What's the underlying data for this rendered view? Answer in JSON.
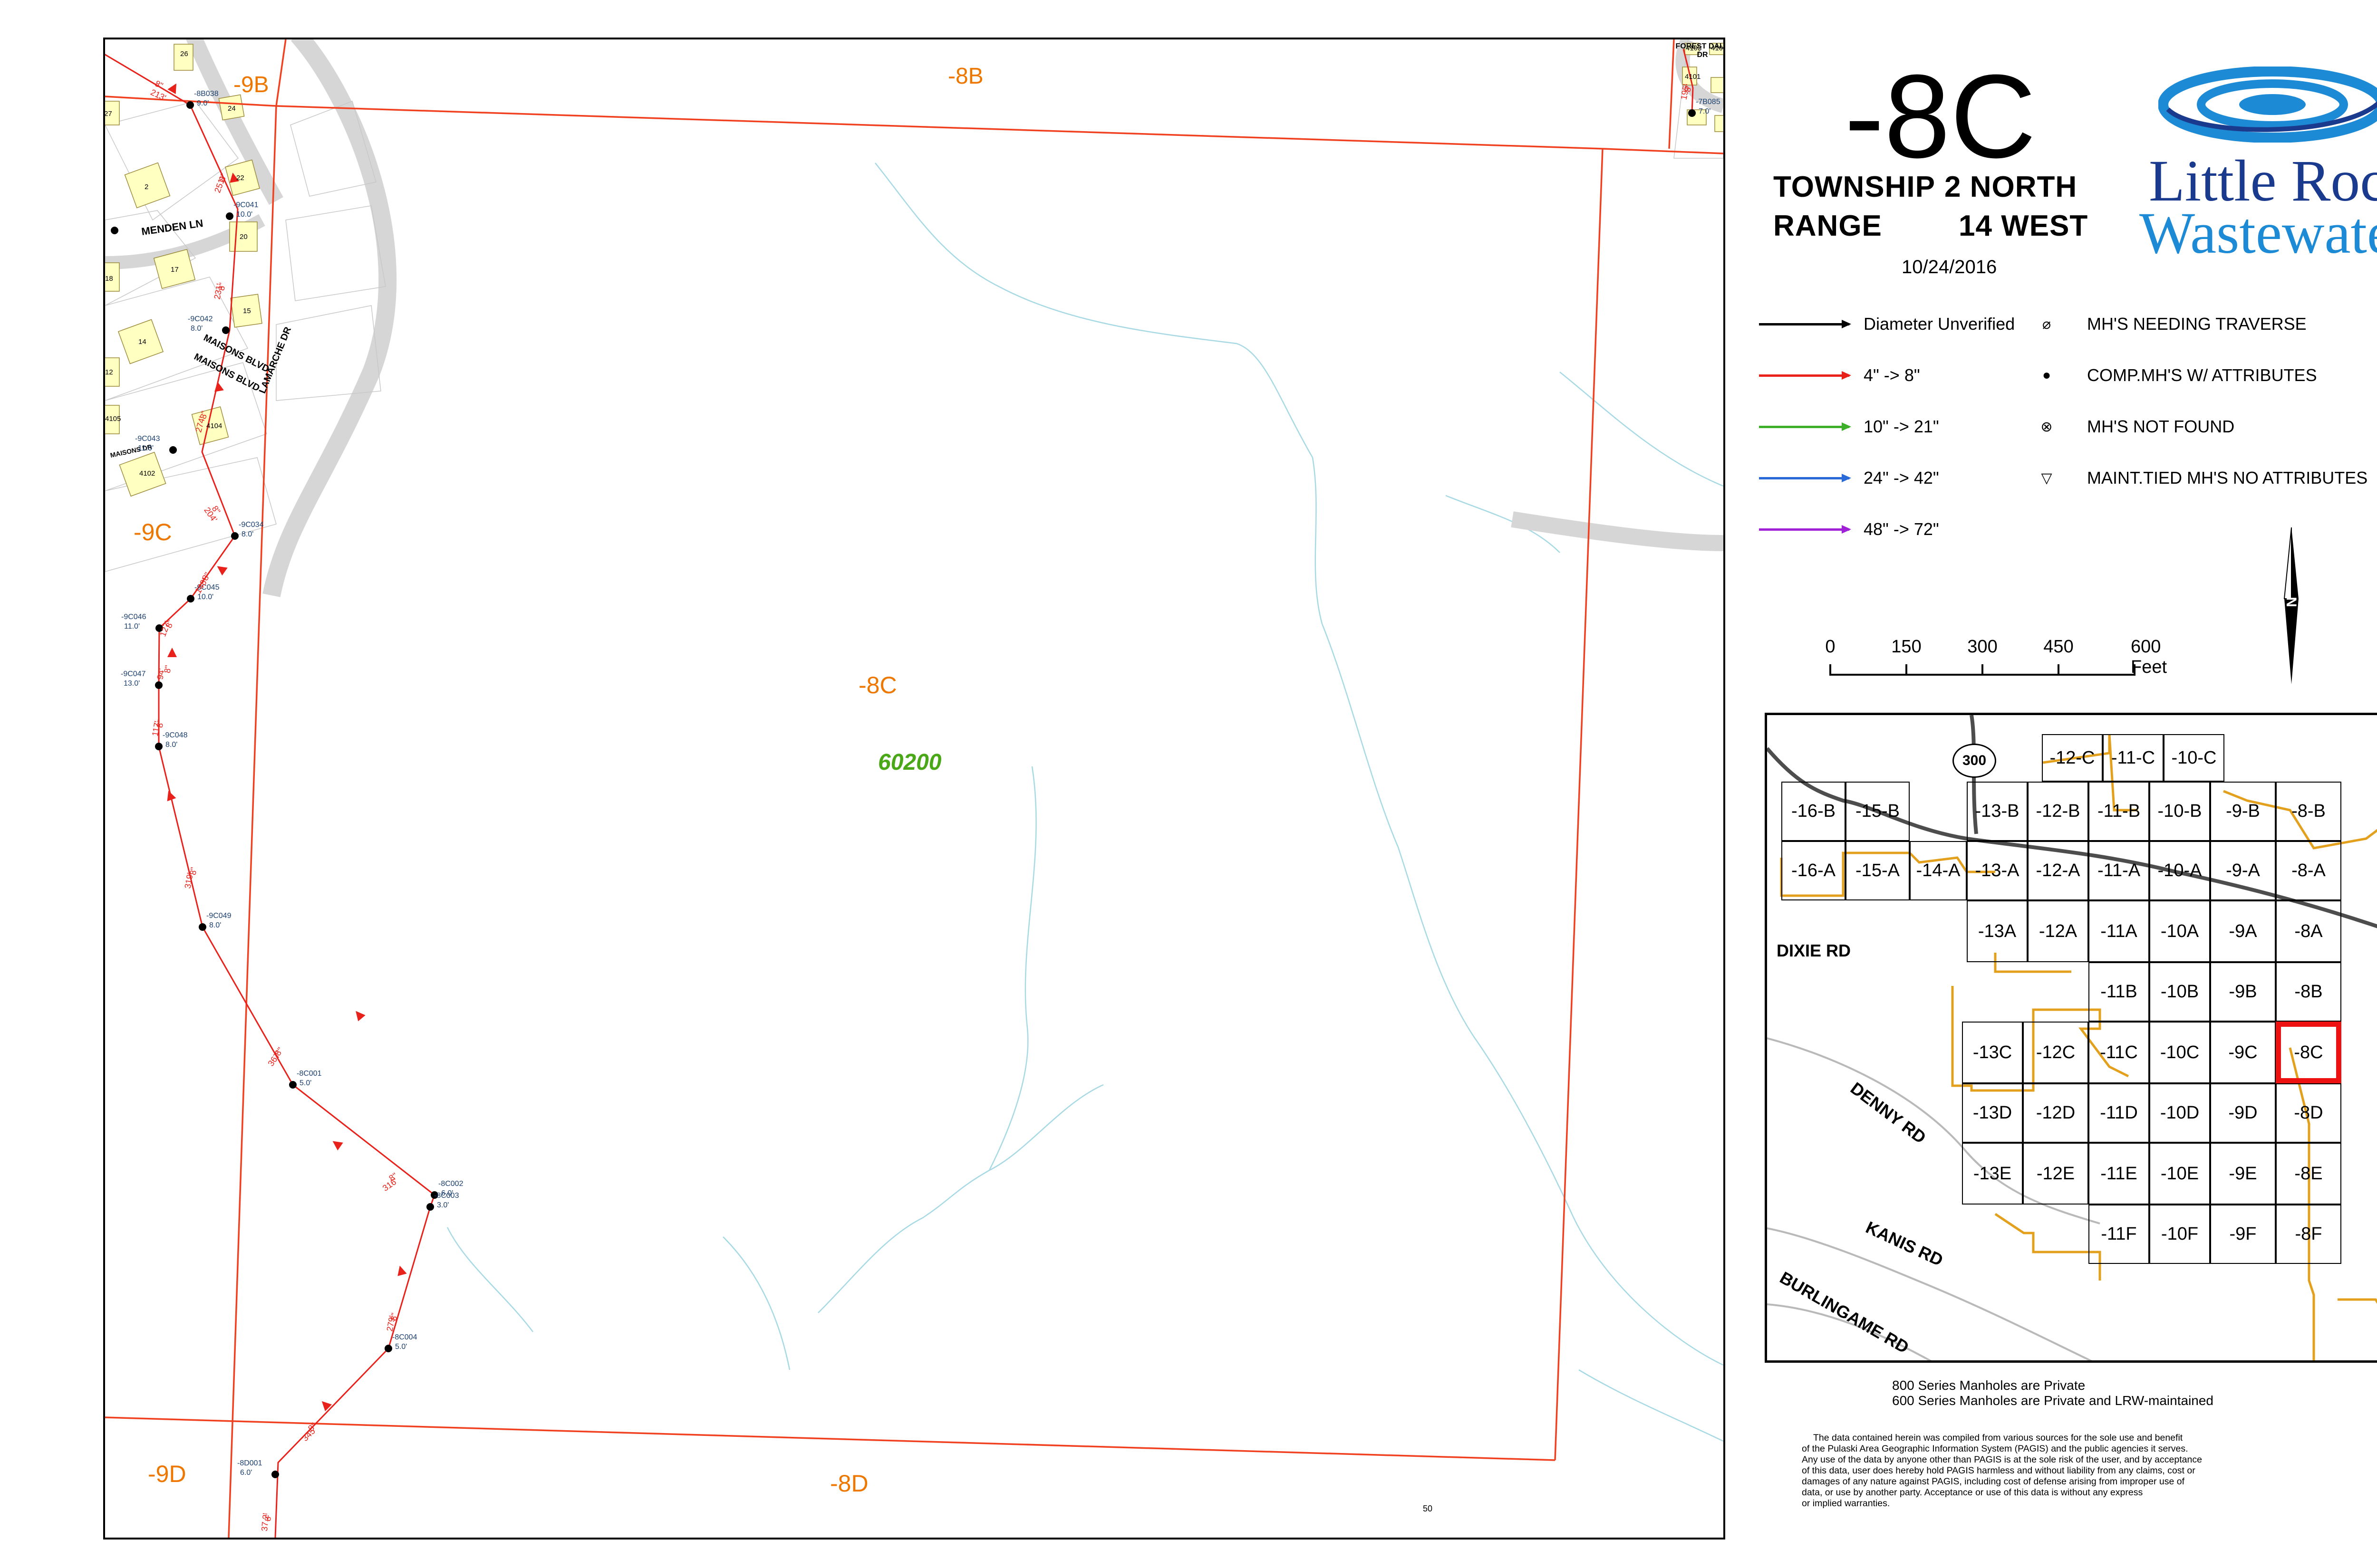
{
  "sheet": {
    "title": "-8C",
    "township_label": "TOWNSHIP",
    "township_value": "2 NORTH",
    "range_label": "RANGE",
    "range_value": "14 WEST",
    "date": "10/24/2016"
  },
  "logo": {
    "line1": "Little Rock",
    "line2": "Wastewater",
    "colors": {
      "dark": "#1a3a8e",
      "light": "#1d8ad6"
    }
  },
  "legend": {
    "lines": [
      {
        "label": "Diameter Unverified",
        "color": "#000000"
      },
      {
        "label": "4\" -> 8\"",
        "color": "#e8211b"
      },
      {
        "label": "10\" -> 21\"",
        "color": "#3cb028"
      },
      {
        "label": "24\" -> 42\"",
        "color": "#2a6ad8"
      },
      {
        "label": "48\" -> 72\"",
        "color": "#a020d8"
      }
    ],
    "symbols": [
      {
        "label": "MH'S NEEDING TRAVERSE",
        "icon": "crossed-circle-icon"
      },
      {
        "label": "COMP.MH'S W/ ATTRIBUTES",
        "icon": "filled-dot-icon"
      },
      {
        "label": "MH'S NOT FOUND",
        "icon": "x-circle-icon"
      },
      {
        "label": "MAINT.TIED MH'S NO ATTRIBUTES",
        "icon": "triangle-down-icon"
      }
    ]
  },
  "north_arrow": {
    "label": "N"
  },
  "scale_bar": {
    "ticks": [
      "0",
      "150",
      "300",
      "450",
      "600 Feet"
    ]
  },
  "map": {
    "adjacent_sheets": {
      "top": "-8B",
      "top_left": "-9B",
      "left": "-9C",
      "bottom_left": "-9D",
      "bottom": "-8D"
    },
    "center_label": "-8C",
    "area_code": "60200",
    "page_number": "50",
    "roads": [
      "MENDEN LN",
      "MAISONS BLVD",
      "MAISONS BLVD",
      "LAMARCHE DR",
      "MAISONS DR",
      "FOREST DALE DR"
    ],
    "manholes": [
      {
        "id": "-8B038",
        "depth": "9.0'"
      },
      {
        "id": "-9C060",
        "depth": "8.0'"
      },
      {
        "id": "-9C041",
        "depth": "10.0'"
      },
      {
        "id": "-9C042",
        "depth": "8.0'"
      },
      {
        "id": "-9C043",
        "depth": "11.0'"
      },
      {
        "id": "-9C034",
        "depth": "8.0'"
      },
      {
        "id": "-9C045",
        "depth": "10.0'"
      },
      {
        "id": "-9C046",
        "depth": "11.0'"
      },
      {
        "id": "-9C047",
        "depth": "13.0'"
      },
      {
        "id": "-9C048",
        "depth": "8.0'"
      },
      {
        "id": "-9C049",
        "depth": "8.0'"
      },
      {
        "id": "-8C001",
        "depth": "5.0'"
      },
      {
        "id": "-8C002",
        "depth": "6.0'"
      },
      {
        "id": "-8C003",
        "depth": "3.0'"
      },
      {
        "id": "-8C004",
        "depth": "5.0'"
      },
      {
        "id": "-8D001",
        "depth": "6.0'"
      },
      {
        "id": "-7B085",
        "depth": "7.0'"
      }
    ],
    "pipe_labels": [
      "8\"",
      "213'",
      "8\"",
      "251'",
      "8\"",
      "231'",
      "8\"",
      "274'",
      "8\"",
      "204'",
      "8\"",
      "148'",
      "8\"",
      "127'",
      "8\"",
      "94'",
      "8\"",
      "117'",
      "8\"",
      "319'",
      "8\"",
      "367'",
      "8\"",
      "316'",
      "8\"",
      "279'",
      "8\"",
      "345'",
      "8\"",
      "37.2'",
      "8\"",
      "195'"
    ],
    "parcels": [
      "26",
      "24",
      "27",
      "22",
      "2",
      "20",
      "17",
      "18",
      "15",
      "14",
      "12",
      "4104",
      "4105",
      "4102",
      "4103",
      "4100",
      "4101"
    ]
  },
  "index_map": {
    "highway_shield": "300",
    "roads": [
      "DIXIE RD",
      "DENNY RD",
      "KANIS RD",
      "BURLINGAME RD"
    ],
    "current_cell": "-8C",
    "cells": [
      "-12-C",
      "-11-C",
      "-10-C",
      "-16-B",
      "-15-B",
      "-13-B",
      "-12-B",
      "-11-B",
      "-10-B",
      "-9-B",
      "-8-B",
      "-16-A",
      "-15-A",
      "-14-A",
      "-13-A",
      "-12-A",
      "-11-A",
      "-10-A",
      "-9-A",
      "-8-A",
      "-13A",
      "-12A",
      "-11A",
      "-10A",
      "-9A",
      "-8A",
      "-11B",
      "-10B",
      "-9B",
      "-8B",
      "-13C",
      "-12C",
      "-11C",
      "-10C",
      "-9C",
      "-8C",
      "-13D",
      "-12D",
      "-11D",
      "-10D",
      "-9D",
      "-8D",
      "-13E",
      "-12E",
      "-11E",
      "-10E",
      "-9E",
      "-8E",
      "-11F",
      "-10F",
      "-9F",
      "-8F"
    ]
  },
  "notes": {
    "line1": "800 Series Manholes are Private",
    "line2": "600 Series Manholes are Private and LRW-maintained",
    "disclaimer": [
      "The data contained herein was compiled from various sources for the sole use and benefit",
      "of the Pulaski Area Geographic Information System (PAGIS) and the public agencies it serves.",
      "Any use of the data by anyone other than PAGIS is at the sole risk of the user, and by acceptance",
      "of this data, user does hereby hold PAGIS harmless and without liability from any claims, cost or",
      "damages of any nature against PAGIS, including cost of defense arising from improper use of",
      "data, or use by another party.  Acceptance or use of this data is without any express",
      "or implied warranties."
    ]
  }
}
